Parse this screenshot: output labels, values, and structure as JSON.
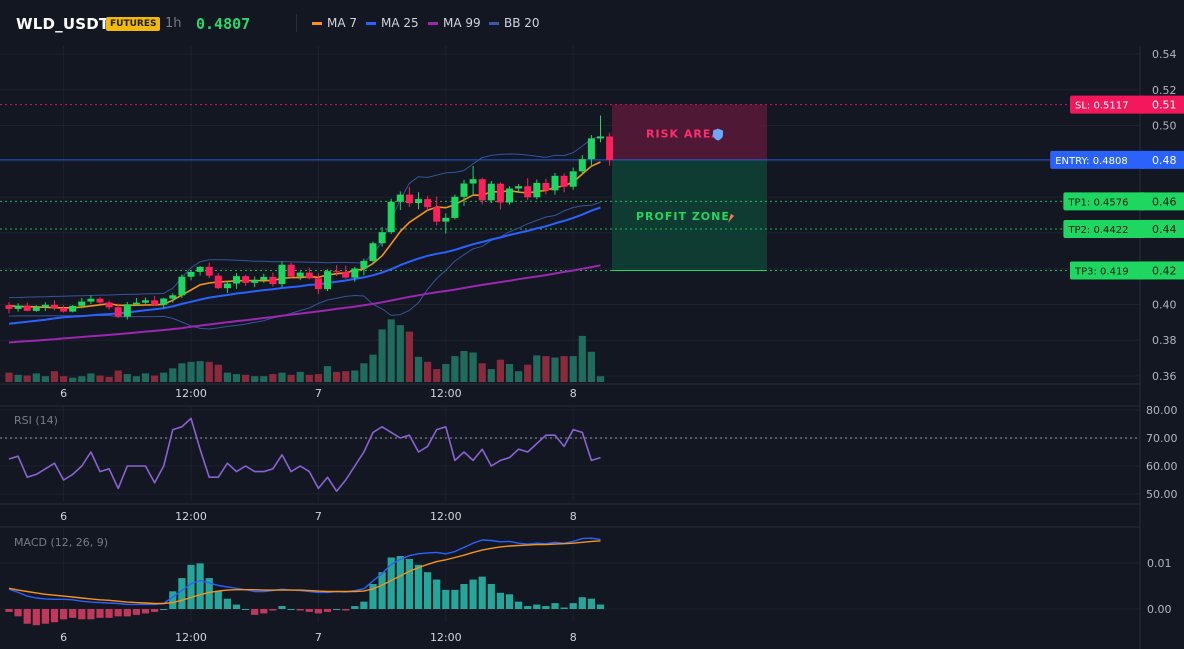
{
  "header": {
    "symbol": "WLD_USDT",
    "badge": "FUTURES",
    "timeframe": "1h",
    "price": "0.4807",
    "legend": [
      {
        "label": "MA 7",
        "color": "#f7931a"
      },
      {
        "label": "MA 25",
        "color": "#2962ff"
      },
      {
        "label": "MA 99",
        "color": "#9c27b0"
      },
      {
        "label": "BB 20",
        "color": "#3a5ba8"
      }
    ]
  },
  "colors": {
    "up": "#1ed760",
    "down": "#ff1f5a",
    "vol_up": "#1f6b5c",
    "vol_down": "#8a2a3c"
  },
  "chart_data": [
    {
      "type": "candlestick",
      "title": "WLD_USDT",
      "ylim": [
        0.355,
        0.545
      ],
      "y_ticks": [
        "0.54",
        "0.52",
        "0.50",
        "0.48",
        "0.46",
        "0.44",
        "0.42",
        "0.40",
        "0.38",
        "0.36"
      ],
      "x_ticks": [
        {
          "i": 6,
          "label": "6"
        },
        {
          "i": 20,
          "label": "12:00"
        },
        {
          "i": 34,
          "label": "7"
        },
        {
          "i": 48,
          "label": "12:00"
        },
        {
          "i": 62,
          "label": "8"
        }
      ],
      "ohlc": [
        [
          0.3996,
          0.4012,
          0.395,
          0.3975
        ],
        [
          0.3975,
          0.4007,
          0.396,
          0.3993
        ],
        [
          0.3993,
          0.4011,
          0.3962,
          0.3964
        ],
        [
          0.3964,
          0.3996,
          0.3959,
          0.3985
        ],
        [
          0.3985,
          0.4012,
          0.3963,
          0.3998
        ],
        [
          0.3998,
          0.4023,
          0.3967,
          0.398
        ],
        [
          0.398,
          0.3995,
          0.3955,
          0.396
        ],
        [
          0.396,
          0.3997,
          0.3956,
          0.3992
        ],
        [
          0.3992,
          0.4036,
          0.3978,
          0.4016
        ],
        [
          0.4016,
          0.4049,
          0.4003,
          0.4032
        ],
        [
          0.4032,
          0.404,
          0.4001,
          0.4011
        ],
        [
          0.4011,
          0.4022,
          0.3971,
          0.3984
        ],
        [
          0.3984,
          0.4005,
          0.3924,
          0.3932
        ],
        [
          0.3932,
          0.4013,
          0.3916,
          0.4001
        ],
        [
          0.4001,
          0.4036,
          0.3991,
          0.401
        ],
        [
          0.401,
          0.4039,
          0.4003,
          0.4023
        ],
        [
          0.4023,
          0.4048,
          0.3993,
          0.3998
        ],
        [
          0.3998,
          0.4038,
          0.3981,
          0.4033
        ],
        [
          0.4033,
          0.4062,
          0.401,
          0.4051
        ],
        [
          0.4051,
          0.4168,
          0.4036,
          0.4155
        ],
        [
          0.4155,
          0.4189,
          0.4135,
          0.4182
        ],
        [
          0.4182,
          0.4215,
          0.4162,
          0.421
        ],
        [
          0.421,
          0.4234,
          0.4147,
          0.4161
        ],
        [
          0.4161,
          0.4175,
          0.4086,
          0.4091
        ],
        [
          0.4091,
          0.4127,
          0.4064,
          0.4117
        ],
        [
          0.4117,
          0.4176,
          0.4087,
          0.4158
        ],
        [
          0.4158,
          0.4166,
          0.4104,
          0.4121
        ],
        [
          0.4121,
          0.4156,
          0.4097,
          0.4137
        ],
        [
          0.4137,
          0.4172,
          0.4121,
          0.4154
        ],
        [
          0.4154,
          0.4178,
          0.41,
          0.4114
        ],
        [
          0.4114,
          0.424,
          0.4096,
          0.4222
        ],
        [
          0.4222,
          0.4234,
          0.4149,
          0.4156
        ],
        [
          0.4156,
          0.4185,
          0.4136,
          0.4178
        ],
        [
          0.4178,
          0.4205,
          0.414,
          0.4146
        ],
        [
          0.4146,
          0.4175,
          0.4057,
          0.4086
        ],
        [
          0.4086,
          0.4196,
          0.4075,
          0.4186
        ],
        [
          0.4186,
          0.4219,
          0.4159,
          0.4183
        ],
        [
          0.4183,
          0.4217,
          0.4144,
          0.415
        ],
        [
          0.415,
          0.421,
          0.4127,
          0.4201
        ],
        [
          0.4201,
          0.4256,
          0.4163,
          0.4243
        ],
        [
          0.4243,
          0.4351,
          0.4223,
          0.4342
        ],
        [
          0.4342,
          0.4432,
          0.4323,
          0.4404
        ],
        [
          0.4404,
          0.4591,
          0.4394,
          0.4574
        ],
        [
          0.4574,
          0.4632,
          0.4528,
          0.4614
        ],
        [
          0.4614,
          0.4657,
          0.4544,
          0.4567
        ],
        [
          0.4567,
          0.4627,
          0.4532,
          0.4589
        ],
        [
          0.4589,
          0.4607,
          0.4525,
          0.4544
        ],
        [
          0.4544,
          0.4603,
          0.4442,
          0.4463
        ],
        [
          0.4463,
          0.4509,
          0.4397,
          0.4484
        ],
        [
          0.4484,
          0.4614,
          0.4475,
          0.4602
        ],
        [
          0.4602,
          0.4697,
          0.4552,
          0.4676
        ],
        [
          0.4676,
          0.4774,
          0.4609,
          0.47
        ],
        [
          0.47,
          0.4708,
          0.456,
          0.4582
        ],
        [
          0.4582,
          0.469,
          0.4567,
          0.4675
        ],
        [
          0.4675,
          0.4683,
          0.453,
          0.457
        ],
        [
          0.457,
          0.4661,
          0.4558,
          0.4648
        ],
        [
          0.4648,
          0.4673,
          0.4623,
          0.4661
        ],
        [
          0.4661,
          0.4706,
          0.4583,
          0.4599
        ],
        [
          0.4599,
          0.4698,
          0.4588,
          0.4679
        ],
        [
          0.4679,
          0.4703,
          0.4616,
          0.4638
        ],
        [
          0.4638,
          0.4735,
          0.4614,
          0.4719
        ],
        [
          0.4719,
          0.4733,
          0.4627,
          0.4658
        ],
        [
          0.4658,
          0.4765,
          0.4641,
          0.4744
        ],
        [
          0.4744,
          0.4835,
          0.4727,
          0.4812
        ],
        [
          0.4812,
          0.4947,
          0.477,
          0.4928
        ],
        [
          0.4928,
          0.5056,
          0.4907,
          0.4939
        ],
        [
          0.4939,
          0.496,
          0.4775,
          0.4807
        ]
      ],
      "volume": [
        1.3,
        1.0,
        0.9,
        1.2,
        0.8,
        1.5,
        0.8,
        0.6,
        0.8,
        1.2,
        0.9,
        0.7,
        1.6,
        1.1,
        0.8,
        1.2,
        0.9,
        1.3,
        1.9,
        2.6,
        2.8,
        2.9,
        2.8,
        2.4,
        1.3,
        1.1,
        1.0,
        0.8,
        0.8,
        1.1,
        1.3,
        1.0,
        1.4,
        1.0,
        1.1,
        2.2,
        1.4,
        1.5,
        1.6,
        2.6,
        3.8,
        7.3,
        8.7,
        7.9,
        7.0,
        3.5,
        2.8,
        1.8,
        2.5,
        3.6,
        4.3,
        4.1,
        2.6,
        1.8,
        3.1,
        2.5,
        1.5,
        2.4,
        3.7,
        3.6,
        3.4,
        3.6,
        3.6,
        6.4,
        4.2,
        0.8
      ],
      "ma7": [
        0.3994,
        0.3988,
        0.3988,
        0.3986,
        0.3984,
        0.3982,
        0.3981,
        0.3981,
        0.3985,
        0.3992,
        0.3998,
        0.4004,
        0.3995,
        0.3995,
        0.3996,
        0.3997,
        0.3998,
        0.4,
        0.4024,
        0.4052,
        0.4081,
        0.411,
        0.412,
        0.4126,
        0.4129,
        0.4132,
        0.4133,
        0.4134,
        0.4133,
        0.4135,
        0.4145,
        0.415,
        0.415,
        0.4155,
        0.4152,
        0.4165,
        0.4172,
        0.4177,
        0.419,
        0.4198,
        0.4229,
        0.4272,
        0.4339,
        0.4408,
        0.4459,
        0.4493,
        0.4527,
        0.4544,
        0.4541,
        0.4558,
        0.4585,
        0.4611,
        0.461,
        0.463,
        0.4629,
        0.4636,
        0.4628,
        0.4623,
        0.4632,
        0.4637,
        0.4654,
        0.4663,
        0.4684,
        0.4729,
        0.4773,
        0.4796
      ],
      "ma25": [
        0.3892,
        0.3898,
        0.3903,
        0.3909,
        0.3915,
        0.3922,
        0.3928,
        0.3932,
        0.3935,
        0.3939,
        0.3943,
        0.3946,
        0.395,
        0.3955,
        0.3961,
        0.3967,
        0.3973,
        0.3979,
        0.3989,
        0.4003,
        0.4015,
        0.4027,
        0.4038,
        0.4046,
        0.4053,
        0.4061,
        0.4067,
        0.4074,
        0.408,
        0.4085,
        0.4092,
        0.4097,
        0.4102,
        0.4109,
        0.4112,
        0.412,
        0.4127,
        0.4134,
        0.4143,
        0.4151,
        0.4163,
        0.4178,
        0.4197,
        0.422,
        0.4239,
        0.4256,
        0.4272,
        0.4283,
        0.4292,
        0.4305,
        0.4321,
        0.4337,
        0.4349,
        0.4363,
        0.4374,
        0.4388,
        0.44,
        0.4411,
        0.4425,
        0.4437,
        0.4453,
        0.4467,
        0.4484,
        0.4502,
        0.4524,
        0.4542
      ],
      "ma99": [
        0.3787,
        0.3791,
        0.3795,
        0.3798,
        0.3802,
        0.3805,
        0.381,
        0.3814,
        0.3818,
        0.3822,
        0.3826,
        0.383,
        0.3834,
        0.3838,
        0.3843,
        0.3848,
        0.3852,
        0.3857,
        0.3862,
        0.3868,
        0.3875,
        0.3882,
        0.3888,
        0.3894,
        0.39,
        0.3907,
        0.3912,
        0.3918,
        0.3924,
        0.393,
        0.3937,
        0.3943,
        0.3949,
        0.3955,
        0.3961,
        0.3968,
        0.3975,
        0.3981,
        0.3988,
        0.3995,
        0.4003,
        0.4012,
        0.4022,
        0.4032,
        0.4042,
        0.4051,
        0.406,
        0.4068,
        0.4075,
        0.4083,
        0.4092,
        0.4101,
        0.4109,
        0.4117,
        0.4125,
        0.4133,
        0.4141,
        0.4149,
        0.4156,
        0.4164,
        0.4173,
        0.4182,
        0.419,
        0.4199,
        0.4209,
        0.4219
      ],
      "bb_upper": [
        0.4038,
        0.4039,
        0.4041,
        0.4042,
        0.4043,
        0.4045,
        0.4046,
        0.4048,
        0.4049,
        0.405,
        0.4052,
        0.4053,
        0.4055,
        0.4056,
        0.4057,
        0.4059,
        0.406,
        0.4061,
        0.4091,
        0.415,
        0.4205,
        0.4239,
        0.425,
        0.425,
        0.4249,
        0.4247,
        0.4245,
        0.4242,
        0.4241,
        0.4239,
        0.424,
        0.4238,
        0.4237,
        0.4236,
        0.4235,
        0.4233,
        0.4235,
        0.4235,
        0.4233,
        0.4232,
        0.4286,
        0.4349,
        0.4475,
        0.4585,
        0.4677,
        0.4714,
        0.471,
        0.4723,
        0.4736,
        0.4738,
        0.4749,
        0.4786,
        0.4821,
        0.4833,
        0.4839,
        0.4841,
        0.484,
        0.4835,
        0.4828,
        0.4822,
        0.4834,
        0.4832,
        0.4849,
        0.4885,
        0.4925,
        0.494
      ],
      "bb_lower": [
        0.3935,
        0.3936,
        0.3936,
        0.3936,
        0.3937,
        0.3937,
        0.3937,
        0.3937,
        0.3938,
        0.3938,
        0.3938,
        0.3938,
        0.3931,
        0.3931,
        0.3932,
        0.3932,
        0.3932,
        0.3933,
        0.3922,
        0.3902,
        0.388,
        0.3866,
        0.3863,
        0.3869,
        0.3877,
        0.3883,
        0.389,
        0.3901,
        0.3909,
        0.3925,
        0.3935,
        0.395,
        0.3966,
        0.398,
        0.4006,
        0.4025,
        0.4035,
        0.4045,
        0.405,
        0.4047,
        0.4001,
        0.3975,
        0.3939,
        0.3943,
        0.3967,
        0.401,
        0.4085,
        0.4145,
        0.4191,
        0.4243,
        0.4278,
        0.4311,
        0.4325,
        0.4358,
        0.4378,
        0.4406,
        0.4427,
        0.4451,
        0.447,
        0.4489,
        0.4497,
        0.4523,
        0.4542,
        0.4552,
        0.4554,
        0.4572
      ]
    },
    {
      "type": "line",
      "title": "RSI (14)",
      "ylim": [
        45,
        80
      ],
      "y_ticks": [
        "80.00",
        "70.00",
        "60.00",
        "50.00"
      ],
      "values": [
        62.5,
        63.5,
        56,
        57,
        59,
        61,
        55,
        57,
        60,
        65,
        58,
        59,
        52,
        60,
        60,
        60,
        54,
        60,
        73,
        74,
        77,
        66,
        56,
        56,
        61,
        58,
        60,
        58,
        58,
        59,
        64,
        58,
        60,
        58,
        52,
        56,
        51,
        55,
        60,
        65,
        72,
        74,
        72,
        70,
        71,
        65,
        67,
        73,
        74,
        62,
        65,
        62,
        66,
        60,
        62,
        63,
        66,
        65,
        68,
        71,
        71,
        67,
        73,
        72,
        62,
        63
      ],
      "reference_line": 70
    },
    {
      "type": "line",
      "title": "MACD (12, 26, 9)",
      "ylim": [
        -0.003,
        0.018
      ],
      "y_ticks": [
        "0.01",
        "0.00"
      ],
      "series": [
        {
          "values": [
            0.0043,
            0.0036,
            0.0028,
            0.0024,
            0.0022,
            0.0021,
            0.0021,
            0.002,
            0.0017,
            0.0015,
            0.0014,
            0.0013,
            0.0012,
            0.001,
            0.001,
            0.001,
            0.001,
            0.0012,
            0.0026,
            0.004,
            0.0055,
            0.0062,
            0.0057,
            0.0051,
            0.0048,
            0.0045,
            0.0042,
            0.0038,
            0.0038,
            0.004,
            0.0043,
            0.0041,
            0.004,
            0.0038,
            0.0036,
            0.0036,
            0.0038,
            0.0037,
            0.004,
            0.0044,
            0.0061,
            0.0077,
            0.0097,
            0.0108,
            0.0116,
            0.012,
            0.0122,
            0.0123,
            0.012,
            0.0125,
            0.0134,
            0.0143,
            0.015,
            0.0149,
            0.0146,
            0.0147,
            0.0143,
            0.0141,
            0.0143,
            0.0142,
            0.0145,
            0.0143,
            0.0147,
            0.0153,
            0.0154,
            0.0151
          ]
        },
        {
          "values": [
            0.0045,
            0.0041,
            0.0038,
            0.0035,
            0.0032,
            0.003,
            0.0028,
            0.0026,
            0.0024,
            0.0022,
            0.002,
            0.0019,
            0.0017,
            0.0015,
            0.0014,
            0.0013,
            0.0012,
            0.0012,
            0.0014,
            0.0019,
            0.0025,
            0.0031,
            0.0036,
            0.0039,
            0.0041,
            0.0042,
            0.0042,
            0.0042,
            0.0041,
            0.0041,
            0.0041,
            0.0041,
            0.0041,
            0.004,
            0.0039,
            0.0038,
            0.0038,
            0.0038,
            0.0038,
            0.0039,
            0.0044,
            0.0052,
            0.0062,
            0.0072,
            0.0082,
            0.009,
            0.0097,
            0.0103,
            0.0107,
            0.0112,
            0.0117,
            0.0123,
            0.0128,
            0.0132,
            0.0135,
            0.0137,
            0.0138,
            0.0139,
            0.014,
            0.014,
            0.0141,
            0.0142,
            0.0143,
            0.0145,
            0.0147,
            0.0148
          ]
        }
      ]
    }
  ],
  "annotations": {
    "risk_label": "RISK AREA",
    "profit_label": "PROFIT ZONE",
    "risk_top": 0.5117,
    "entry": 0.4808,
    "profit_bottom": 0.419,
    "levels": [
      {
        "name": "sl",
        "label": "SL: 0.5117",
        "tick": "0.51",
        "value": 0.5117,
        "color": "#f5175b",
        "line": "#f5175b"
      },
      {
        "name": "entry",
        "label": "ENTRY: 0.4808",
        "tick": "0.48",
        "value": 0.4808,
        "color": "#2962ff",
        "line": "#2962ff"
      },
      {
        "name": "tp1",
        "label": "TP1: 0.4576",
        "tick": "0.46",
        "value": 0.4576,
        "color": "#1ed760",
        "line": "#1ed760"
      },
      {
        "name": "tp2",
        "label": "TP2: 0.4422",
        "tick": "0.44",
        "value": 0.4422,
        "color": "#1ed760",
        "line": "#1ed760"
      },
      {
        "name": "tp3",
        "label": "TP3: 0.419",
        "tick": "0.42",
        "value": 0.419,
        "color": "#1ed760",
        "line": "#1ed760"
      }
    ]
  }
}
